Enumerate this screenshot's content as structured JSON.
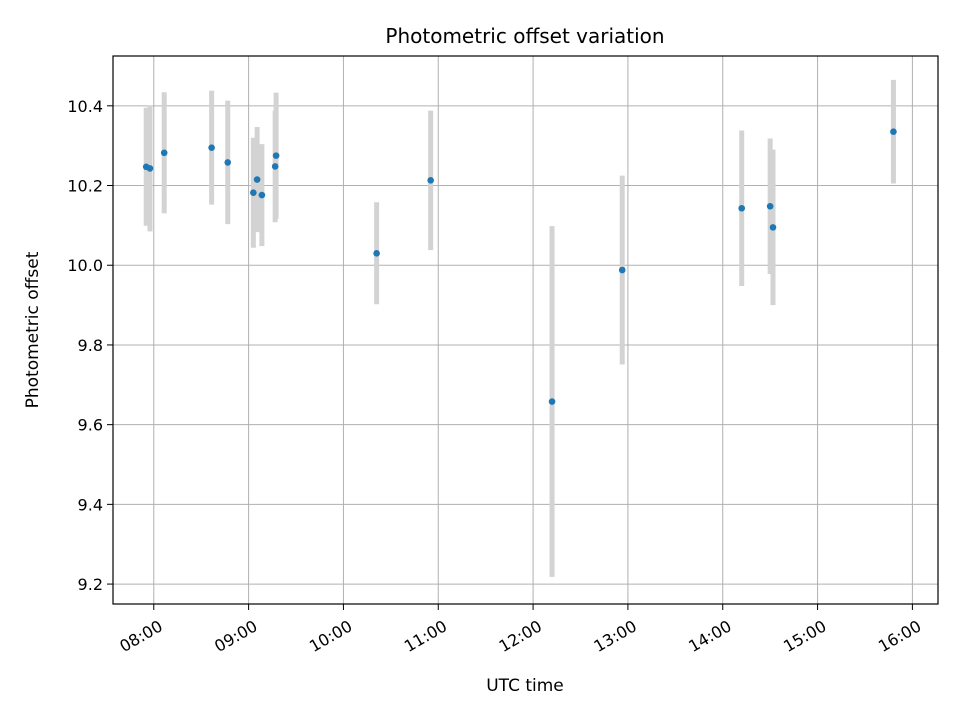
{
  "chart_data": {
    "type": "scatter",
    "title": "Photometric offset variation",
    "xlabel": "UTC time",
    "ylabel": "Photometric offset",
    "xlim_hours": [
      7.57,
      16.27
    ],
    "ylim": [
      9.15,
      10.525
    ],
    "x_ticks": [
      {
        "hour": 8,
        "label": "08:00"
      },
      {
        "hour": 9,
        "label": "09:00"
      },
      {
        "hour": 10,
        "label": "10:00"
      },
      {
        "hour": 11,
        "label": "11:00"
      },
      {
        "hour": 12,
        "label": "12:00"
      },
      {
        "hour": 13,
        "label": "13:00"
      },
      {
        "hour": 14,
        "label": "14:00"
      },
      {
        "hour": 15,
        "label": "15:00"
      },
      {
        "hour": 16,
        "label": "16:00"
      }
    ],
    "y_ticks": [
      {
        "value": 9.2,
        "label": "9.2"
      },
      {
        "value": 9.4,
        "label": "9.4"
      },
      {
        "value": 9.6,
        "label": "9.6"
      },
      {
        "value": 9.8,
        "label": "9.8"
      },
      {
        "value": 10.0,
        "label": "10.0"
      },
      {
        "value": 10.2,
        "label": "10.2"
      },
      {
        "value": 10.4,
        "label": "10.4"
      }
    ],
    "grid": true,
    "marker_color": "#1f77b4",
    "errorbar_color": "#d3d3d3",
    "series": [
      {
        "name": "offset",
        "points": [
          {
            "time": "07:55",
            "x": 7.92,
            "y": 10.247,
            "err": 0.148
          },
          {
            "time": "07:57",
            "x": 7.96,
            "y": 10.243,
            "err": 0.158
          },
          {
            "time": "08:07",
            "x": 8.11,
            "y": 10.282,
            "err": 0.152
          },
          {
            "time": "08:37",
            "x": 8.61,
            "y": 10.295,
            "err": 0.143
          },
          {
            "time": "08:47",
            "x": 8.78,
            "y": 10.258,
            "err": 0.155
          },
          {
            "time": "09:03",
            "x": 9.05,
            "y": 10.182,
            "err": 0.138
          },
          {
            "time": "09:05",
            "x": 9.09,
            "y": 10.215,
            "err": 0.132
          },
          {
            "time": "09:08",
            "x": 9.14,
            "y": 10.176,
            "err": 0.128
          },
          {
            "time": "09:16",
            "x": 9.28,
            "y": 10.248,
            "err": 0.14
          },
          {
            "time": "09:17",
            "x": 9.29,
            "y": 10.275,
            "err": 0.158
          },
          {
            "time": "10:21",
            "x": 10.35,
            "y": 10.03,
            "err": 0.128
          },
          {
            "time": "10:55",
            "x": 10.92,
            "y": 10.213,
            "err": 0.175
          },
          {
            "time": "12:12",
            "x": 12.2,
            "y": 9.658,
            "err": 0.44
          },
          {
            "time": "12:56",
            "x": 12.94,
            "y": 9.988,
            "err": 0.237
          },
          {
            "time": "14:12",
            "x": 14.2,
            "y": 10.143,
            "err": 0.195
          },
          {
            "time": "14:30",
            "x": 14.5,
            "y": 10.148,
            "err": 0.17
          },
          {
            "time": "14:32",
            "x": 14.53,
            "y": 10.095,
            "err": 0.195
          },
          {
            "time": "15:48",
            "x": 15.8,
            "y": 10.335,
            "err": 0.13
          }
        ]
      }
    ]
  }
}
